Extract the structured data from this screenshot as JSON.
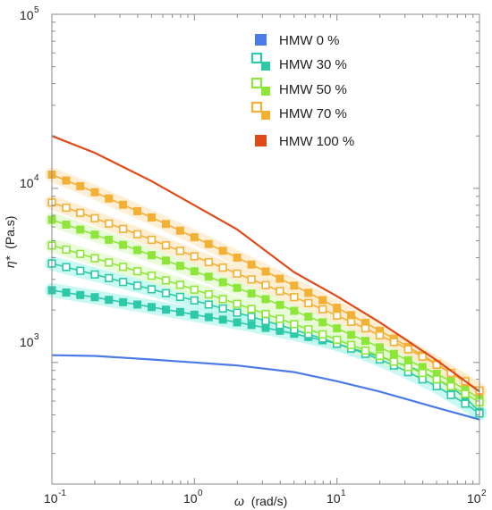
{
  "chart_data": {
    "type": "line",
    "xlabel_symbol": "ω",
    "xlabel_unit": "(rad/s)",
    "ylabel_symbol": "η*",
    "ylabel_unit": "(Pa.s)",
    "x_scale": "log",
    "y_scale": "log",
    "xlim": [
      0.1,
      100
    ],
    "ylim": [
      200,
      100000
    ],
    "x_ticks": [
      {
        "base": "10",
        "exp": "-1",
        "value": 0.1
      },
      {
        "base": "10",
        "exp": "0",
        "value": 1
      },
      {
        "base": "10",
        "exp": "1",
        "value": 10
      },
      {
        "base": "10",
        "exp": "2",
        "value": 100
      }
    ],
    "y_ticks": [
      {
        "base": "10",
        "exp": "3",
        "value": 1000
      },
      {
        "base": "10",
        "exp": "4",
        "value": 10000
      },
      {
        "base": "10",
        "exp": "5",
        "value": 100000
      }
    ],
    "grid": false,
    "legend_position": "top-right",
    "series": [
      {
        "name": "HMW 0 %",
        "color": "#4a7be6",
        "style": "line",
        "x": [
          0.1,
          0.2,
          0.5,
          1,
          2,
          5,
          10,
          20,
          50,
          100
        ],
        "y": [
          1100,
          1090,
          1040,
          1000,
          960,
          880,
          780,
          680,
          550,
          470
        ]
      },
      {
        "name": "HMW 30 %",
        "color": "#2dc9a8",
        "halo": "#b8f5ee",
        "style": "markers",
        "x": [
          0.1,
          0.126,
          0.158,
          0.2,
          0.251,
          0.316,
          0.398,
          0.501,
          0.631,
          0.794,
          1.0,
          1.259,
          1.585,
          1.995,
          2.512,
          3.162,
          3.981,
          5.012,
          6.31,
          7.943,
          10.0,
          12.59,
          15.85,
          19.95,
          25.12,
          31.62,
          39.81,
          50.12,
          63.1,
          79.43,
          100
        ],
        "y_filled": [
          2600,
          2520,
          2440,
          2370,
          2290,
          2220,
          2150,
          2080,
          2010,
          1950,
          1880,
          1820,
          1760,
          1700,
          1640,
          1580,
          1520,
          1460,
          1400,
          1340,
          1280,
          1210,
          1140,
          1080,
          1010,
          950,
          880,
          800,
          720,
          630,
          520
        ],
        "y_open": [
          3700,
          3530,
          3360,
          3200,
          3050,
          2900,
          2760,
          2630,
          2500,
          2380,
          2270,
          2150,
          2040,
          1930,
          1830,
          1730,
          1640,
          1540,
          1450,
          1370,
          1280,
          1200,
          1120,
          1040,
          960,
          880,
          800,
          730,
          650,
          580,
          510
        ]
      },
      {
        "name": "HMW 50 %",
        "color": "#8fe63a",
        "halo": "#e3f9cf",
        "style": "markers",
        "x": [
          0.1,
          0.126,
          0.158,
          0.2,
          0.251,
          0.316,
          0.398,
          0.501,
          0.631,
          0.794,
          1.0,
          1.259,
          1.585,
          1.995,
          2.512,
          3.162,
          3.981,
          5.012,
          6.31,
          7.943,
          10.0,
          12.59,
          15.85,
          19.95,
          25.12,
          31.62,
          39.81,
          50.12,
          63.1,
          79.43,
          100
        ],
        "y_filled": [
          6600,
          6190,
          5800,
          5420,
          5070,
          4740,
          4420,
          4130,
          3850,
          3590,
          3340,
          3110,
          2890,
          2680,
          2490,
          2310,
          2140,
          1980,
          1830,
          1700,
          1570,
          1440,
          1330,
          1220,
          1120,
          1030,
          940,
          860,
          780,
          700,
          620
        ],
        "y_open": [
          4700,
          4450,
          4200,
          3970,
          3750,
          3540,
          3340,
          3150,
          2960,
          2790,
          2620,
          2460,
          2310,
          2170,
          2030,
          1900,
          1780,
          1660,
          1550,
          1450,
          1350,
          1260,
          1170,
          1090,
          1010,
          940,
          870,
          800,
          730,
          660,
          590
        ]
      },
      {
        "name": "HMW 70 %",
        "color": "#f2b035",
        "halo": "#fbe9c8",
        "style": "markers",
        "x": [
          0.1,
          0.126,
          0.158,
          0.2,
          0.251,
          0.316,
          0.398,
          0.501,
          0.631,
          0.794,
          1.0,
          1.259,
          1.585,
          1.995,
          2.512,
          3.162,
          3.981,
          5.012,
          6.31,
          7.943,
          10.0,
          12.59,
          15.85,
          19.95,
          25.12,
          31.62,
          39.81,
          50.12,
          63.1,
          79.43,
          100
        ],
        "y_filled": [
          12000,
          11100,
          10300,
          9500,
          8750,
          8050,
          7400,
          6800,
          6240,
          5720,
          5240,
          4790,
          4380,
          4000,
          3650,
          3330,
          3030,
          2760,
          2510,
          2280,
          2060,
          1870,
          1690,
          1520,
          1370,
          1230,
          1100,
          980,
          870,
          770,
          680
        ],
        "y_open": [
          8300,
          7750,
          7230,
          6740,
          6280,
          5850,
          5450,
          5070,
          4710,
          4380,
          4070,
          3770,
          3500,
          3240,
          3000,
          2780,
          2570,
          2370,
          2190,
          2020,
          1860,
          1710,
          1570,
          1430,
          1310,
          1190,
          1080,
          970,
          870,
          780,
          690
        ]
      },
      {
        "name": "HMW 100 %",
        "color": "#e04a18",
        "style": "line",
        "x": [
          0.1,
          0.2,
          0.5,
          1,
          2,
          5,
          10,
          20,
          50,
          100
        ],
        "y": [
          20000,
          16000,
          11000,
          8000,
          5800,
          3300,
          2400,
          1700,
          1030,
          680
        ]
      }
    ]
  }
}
